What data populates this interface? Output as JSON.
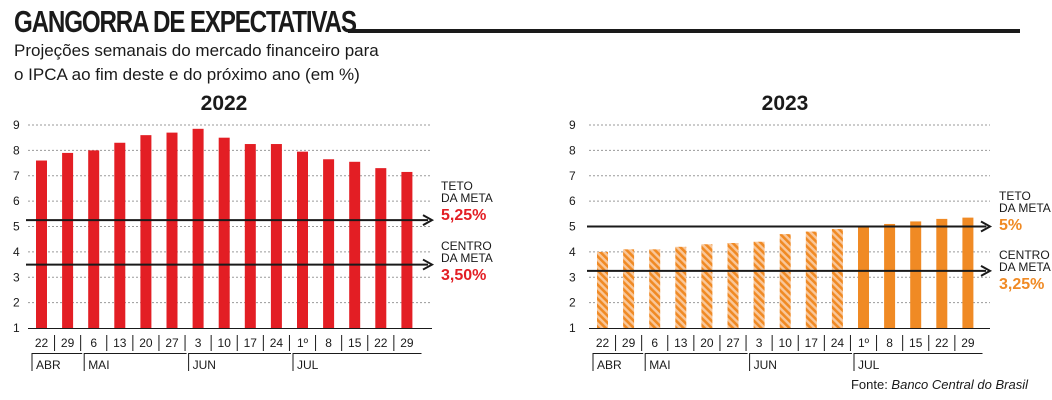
{
  "header": {
    "title": "GANGORRA DE EXPECTATIVAS",
    "subtitle_line1": "Projeções semanais do mercado financeiro para",
    "subtitle_line2": "o IPCA ao fim deste e do próximo ano (em %)"
  },
  "footer": {
    "source_label": "Fonte: ",
    "source_name": "Banco Central do Brasil"
  },
  "colors": {
    "red": "#e31e24",
    "orange": "#f08a24",
    "hatch_light": "#f9c79a",
    "text": "#1a1a1a",
    "grid": "#9a9a9a"
  },
  "chart_data": [
    {
      "type": "bar",
      "title": "2022",
      "x_tick_labels": [
        "22",
        "29",
        "6",
        "13",
        "20",
        "27",
        "3",
        "10",
        "17",
        "24",
        "1º",
        "8",
        "15",
        "22",
        "29"
      ],
      "month_labels": [
        {
          "label": "ABR",
          "start_index": 0
        },
        {
          "label": "MAI",
          "start_index": 2
        },
        {
          "label": "JUN",
          "start_index": 6
        },
        {
          "label": "JUL",
          "start_index": 10
        }
      ],
      "values": [
        7.6,
        7.9,
        8.0,
        8.3,
        8.6,
        8.7,
        8.85,
        8.5,
        8.25,
        8.25,
        7.95,
        7.65,
        7.55,
        7.3,
        7.15
      ],
      "series_color": "red",
      "hatched_indices": [],
      "ylim": [
        1,
        9
      ],
      "yticks": [
        1,
        2,
        3,
        4,
        5,
        6,
        7,
        8,
        9
      ],
      "grid": true,
      "reference_lines": [
        {
          "label_line1": "TETO",
          "label_line2": "DA META",
          "value_text": "5,25%",
          "value": 5.25
        },
        {
          "label_line1": "CENTRO",
          "label_line2": "DA META",
          "value_text": "3,50%",
          "value": 3.5
        }
      ]
    },
    {
      "type": "bar",
      "title": "2023",
      "x_tick_labels": [
        "22",
        "29",
        "6",
        "13",
        "20",
        "27",
        "3",
        "10",
        "17",
        "24",
        "1º",
        "8",
        "15",
        "22",
        "29"
      ],
      "month_labels": [
        {
          "label": "ABR",
          "start_index": 0
        },
        {
          "label": "MAI",
          "start_index": 2
        },
        {
          "label": "JUN",
          "start_index": 6
        },
        {
          "label": "JUL",
          "start_index": 10
        }
      ],
      "values": [
        4.0,
        4.1,
        4.1,
        4.2,
        4.3,
        4.35,
        4.4,
        4.7,
        4.8,
        4.9,
        5.0,
        5.1,
        5.2,
        5.3,
        5.35
      ],
      "series_color": "orange",
      "hatched_indices": [
        0,
        1,
        2,
        3,
        4,
        5,
        6,
        7,
        8,
        9
      ],
      "ylim": [
        1,
        9
      ],
      "yticks": [
        1,
        2,
        3,
        4,
        5,
        6,
        7,
        8,
        9
      ],
      "grid": true,
      "reference_lines": [
        {
          "label_line1": "TETO",
          "label_line2": "DA META",
          "value_text": "5%",
          "value": 5.0
        },
        {
          "label_line1": "CENTRO",
          "label_line2": "DA META",
          "value_text": "3,25%",
          "value": 3.25
        }
      ]
    }
  ]
}
